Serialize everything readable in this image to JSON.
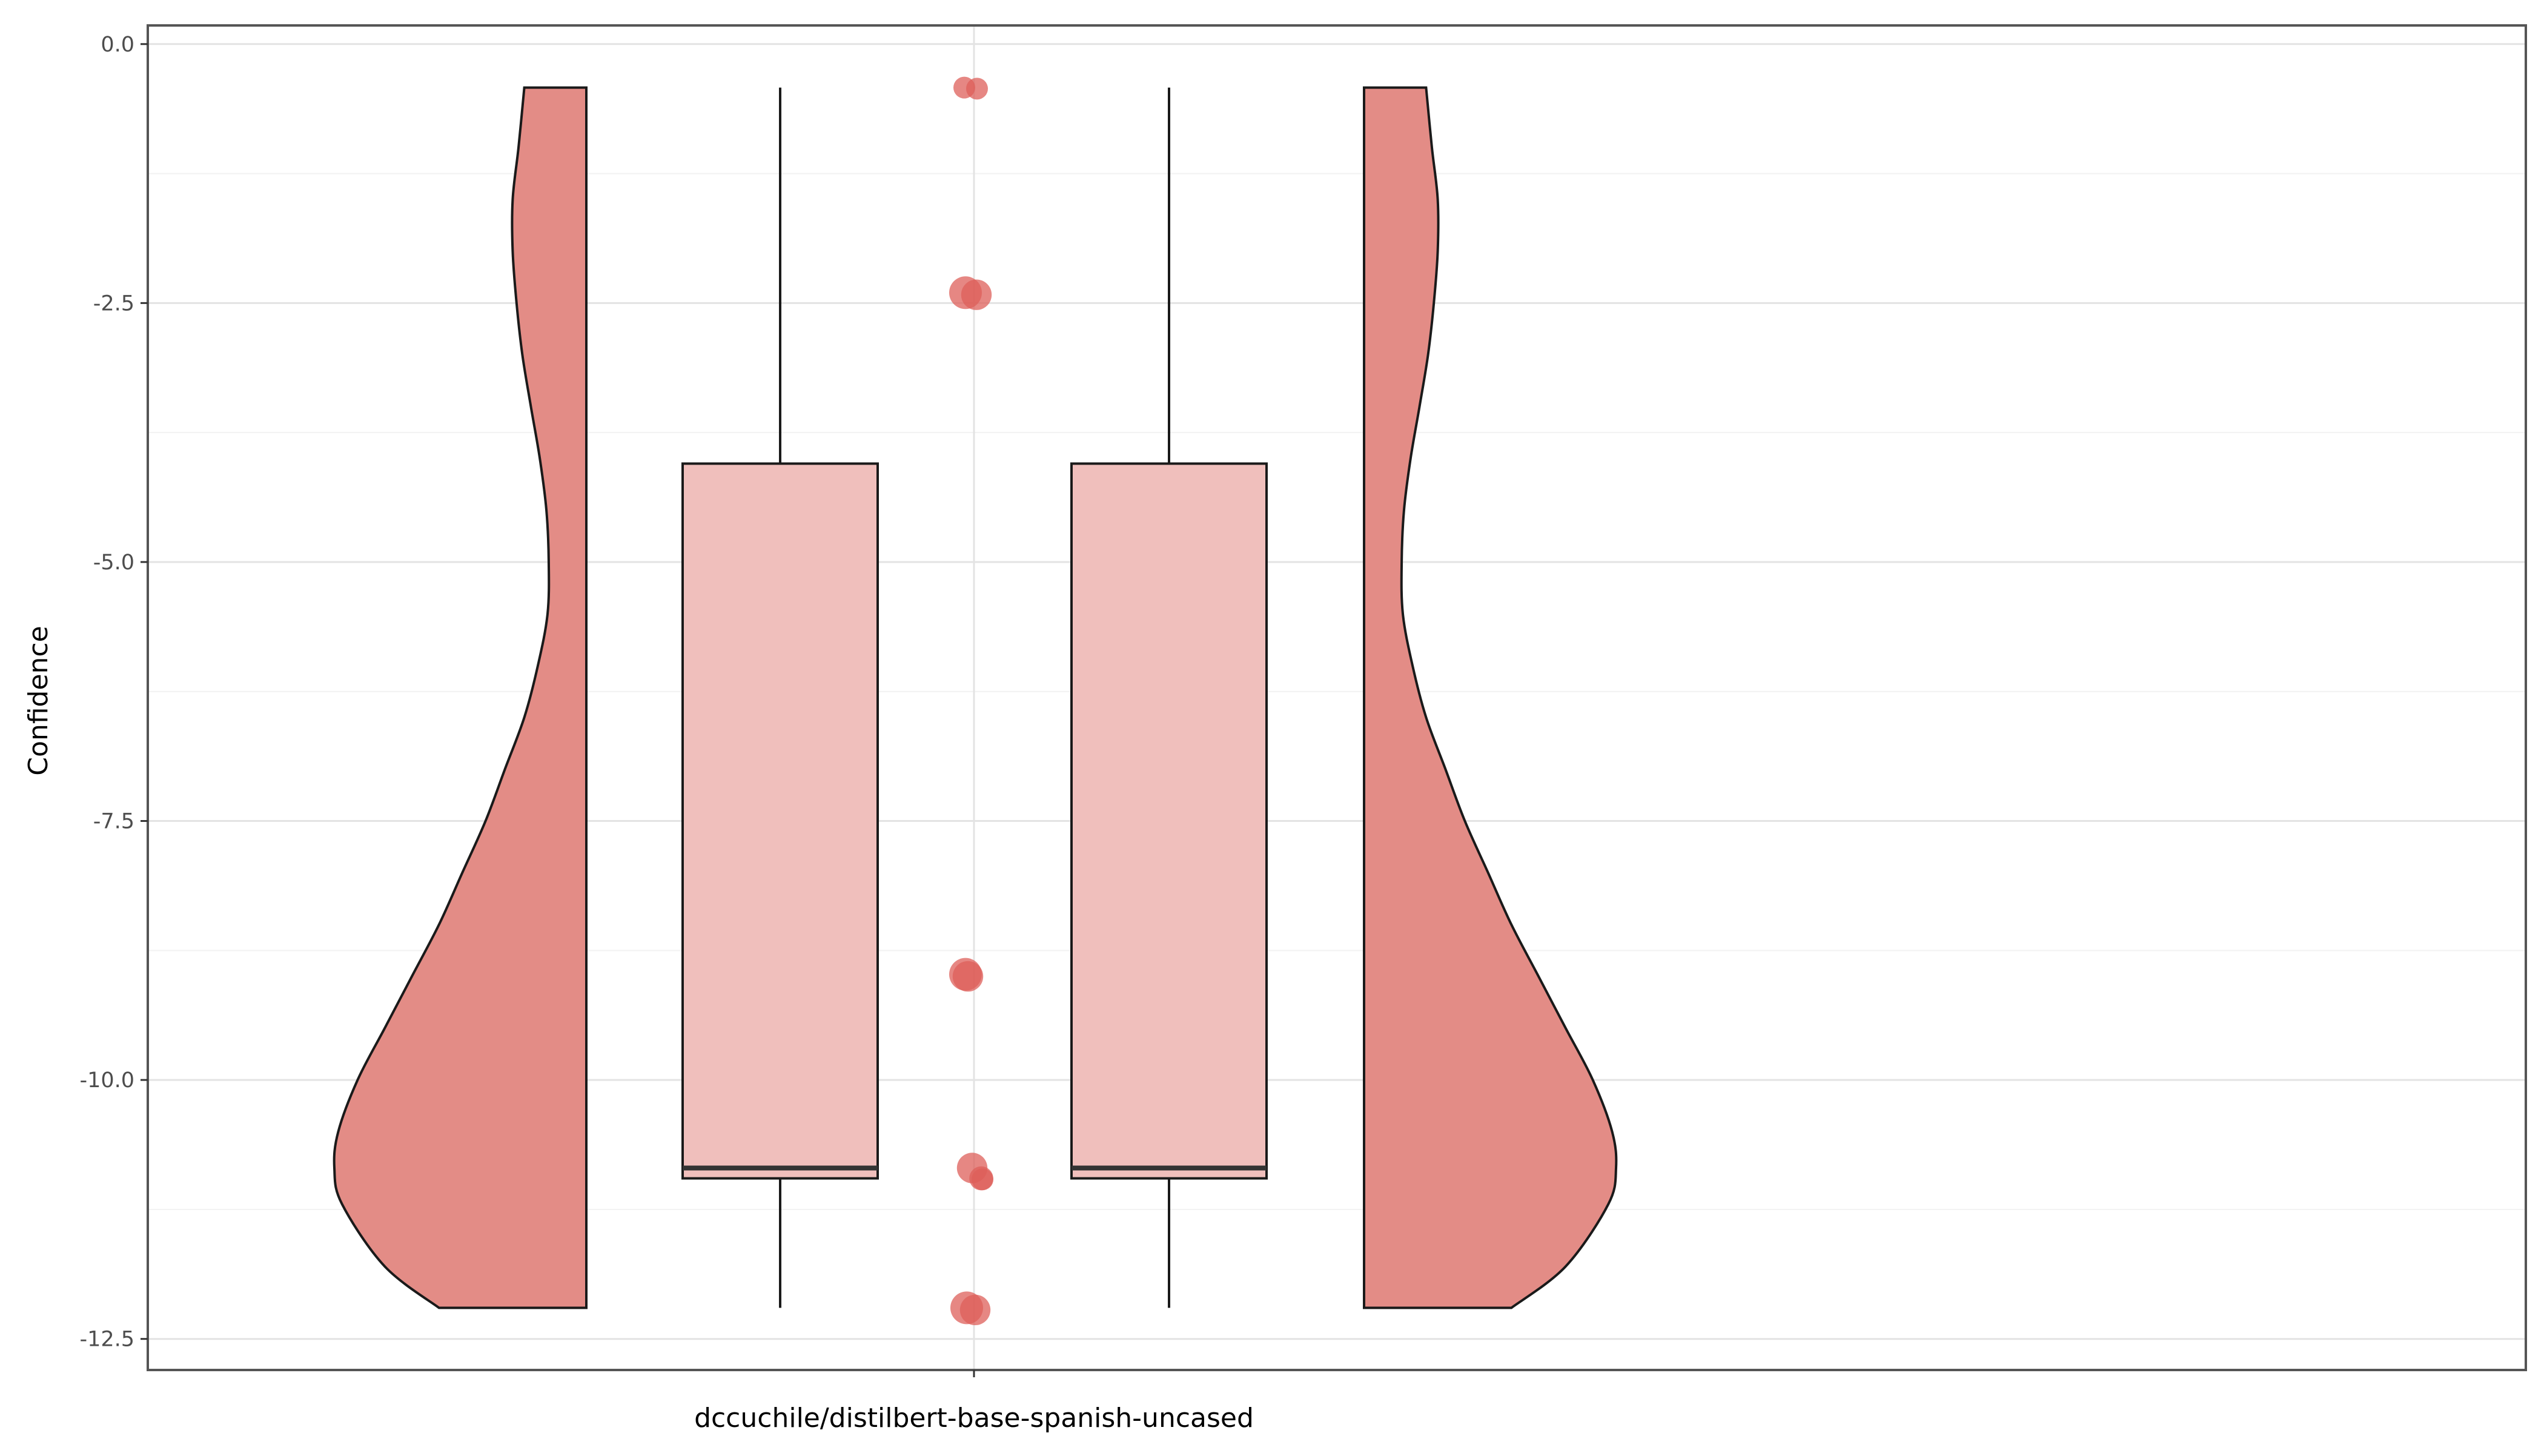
{
  "chart_data": {
    "type": "violin-box-raincloud",
    "title": "",
    "xlabel": "dccuchile/distilbert-base-spanish-uncased",
    "ylabel": "Confidence",
    "ylim": [
      -12.8,
      0.18
    ],
    "yticks": [
      0.0,
      -2.5,
      -5.0,
      -7.5,
      -10.0,
      -12.5
    ],
    "ytick_labels": [
      "0.0",
      "-2.5",
      "-5.0",
      "-7.5",
      "-10.0",
      "-12.5"
    ],
    "grid": true,
    "legend": "none",
    "colors": {
      "violin_fill": "#e38c86",
      "box_fill": "#f0bfbc",
      "point_fill": "#dd5f59",
      "outline": "#1a1a1a",
      "grid": "#e3e3e3",
      "panel_border": "#555555"
    },
    "box": {
      "min": -12.2,
      "q1": -10.95,
      "median": -10.85,
      "q3": -4.05,
      "max": -0.42
    },
    "violin_density": {
      "y": [
        -12.2,
        -11.8,
        -11.2,
        -10.85,
        -10.5,
        -10.0,
        -9.5,
        -9.0,
        -8.5,
        -8.0,
        -7.5,
        -7.0,
        -6.5,
        -6.0,
        -5.5,
        -5.0,
        -4.5,
        -4.0,
        -3.5,
        -3.0,
        -2.5,
        -2.0,
        -1.5,
        -1.0,
        -0.42
      ],
      "half_width": [
        0.38,
        0.52,
        0.63,
        0.65,
        0.64,
        0.59,
        0.52,
        0.45,
        0.38,
        0.32,
        0.26,
        0.21,
        0.16,
        0.125,
        0.1,
        0.097,
        0.103,
        0.12,
        0.143,
        0.165,
        0.18,
        0.19,
        0.19,
        0.175,
        0.16
      ]
    },
    "points": [
      {
        "y": -0.42,
        "size": 1.0
      },
      {
        "y": -0.43,
        "size": 1.0
      },
      {
        "y": -2.4,
        "size": 1.5
      },
      {
        "y": -2.42,
        "size": 1.4
      },
      {
        "y": -8.98,
        "size": 1.5
      },
      {
        "y": -9.0,
        "size": 1.4
      },
      {
        "y": -10.85,
        "size": 1.4
      },
      {
        "y": -10.95,
        "size": 1.1
      },
      {
        "y": -10.96,
        "size": 1.0
      },
      {
        "y": -12.2,
        "size": 1.5
      },
      {
        "y": -12.22,
        "size": 1.4
      }
    ]
  }
}
